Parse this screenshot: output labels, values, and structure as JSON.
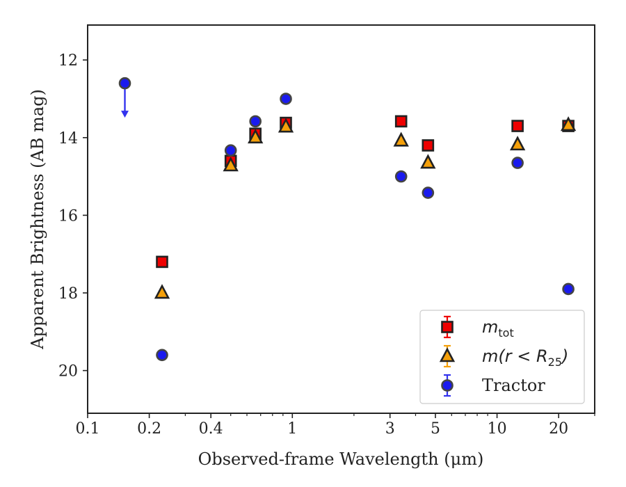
{
  "chart_data": {
    "type": "scatter",
    "xlabel": "Observed-frame Wavelength (μm)",
    "ylabel": "Apparent Brightness (AB mag)",
    "x_scale": "log",
    "y_inverted": true,
    "xlim": [
      0.1,
      30
    ],
    "ylim": [
      21.1,
      11.1
    ],
    "x_ticks": [
      {
        "value": 0.1,
        "label": "0.1"
      },
      {
        "value": 0.2,
        "label": "0.2"
      },
      {
        "value": 0.4,
        "label": "0.4"
      },
      {
        "value": 1,
        "label": "1"
      },
      {
        "value": 3,
        "label": "3"
      },
      {
        "value": 5,
        "label": "5"
      },
      {
        "value": 10,
        "label": "10"
      },
      {
        "value": 20,
        "label": "20"
      }
    ],
    "y_ticks": [
      {
        "value": 12,
        "label": "12"
      },
      {
        "value": 14,
        "label": "14"
      },
      {
        "value": 16,
        "label": "16"
      },
      {
        "value": 18,
        "label": "18"
      },
      {
        "value": 20,
        "label": "20"
      }
    ],
    "grid": false,
    "legend_position": "bottom-right",
    "series": [
      {
        "name": "m_tot",
        "legend": {
          "main": "m",
          "sub": "tot"
        },
        "marker": "square",
        "color": "#ee0000",
        "edge_color": "#222222",
        "points": [
          {
            "x": 0.231,
            "y": 17.2
          },
          {
            "x": 0.5,
            "y": 14.6
          },
          {
            "x": 0.66,
            "y": 13.9
          },
          {
            "x": 0.93,
            "y": 13.62
          },
          {
            "x": 3.4,
            "y": 13.58
          },
          {
            "x": 4.6,
            "y": 14.2
          },
          {
            "x": 12.6,
            "y": 13.7
          },
          {
            "x": 22.3,
            "y": 13.7
          }
        ]
      },
      {
        "name": "m(r < R_25)",
        "legend": {
          "main": "m(r < R",
          "sub": "25",
          "after": ")"
        },
        "marker": "triangle",
        "color": "#f5a00a",
        "edge_color": "#222222",
        "points": [
          {
            "x": 0.231,
            "y": 18.0
          },
          {
            "x": 0.5,
            "y": 14.72
          },
          {
            "x": 0.66,
            "y": 14.0
          },
          {
            "x": 0.93,
            "y": 13.72
          },
          {
            "x": 3.4,
            "y": 14.08
          },
          {
            "x": 4.6,
            "y": 14.65
          },
          {
            "x": 12.6,
            "y": 14.18
          },
          {
            "x": 22.3,
            "y": 13.68
          }
        ]
      },
      {
        "name": "Tractor",
        "legend": {
          "main": "Tractor"
        },
        "marker": "circle",
        "color": "#1a1aee",
        "edge_color": "#444444",
        "points": [
          {
            "x": 0.152,
            "y": 12.6,
            "upper_limit": true
          },
          {
            "x": 0.231,
            "y": 19.6
          },
          {
            "x": 0.5,
            "y": 14.33
          },
          {
            "x": 0.66,
            "y": 13.58
          },
          {
            "x": 0.93,
            "y": 13.0
          },
          {
            "x": 3.4,
            "y": 15.0
          },
          {
            "x": 4.6,
            "y": 15.42
          },
          {
            "x": 12.6,
            "y": 14.65
          },
          {
            "x": 22.3,
            "y": 17.9
          }
        ]
      }
    ]
  }
}
